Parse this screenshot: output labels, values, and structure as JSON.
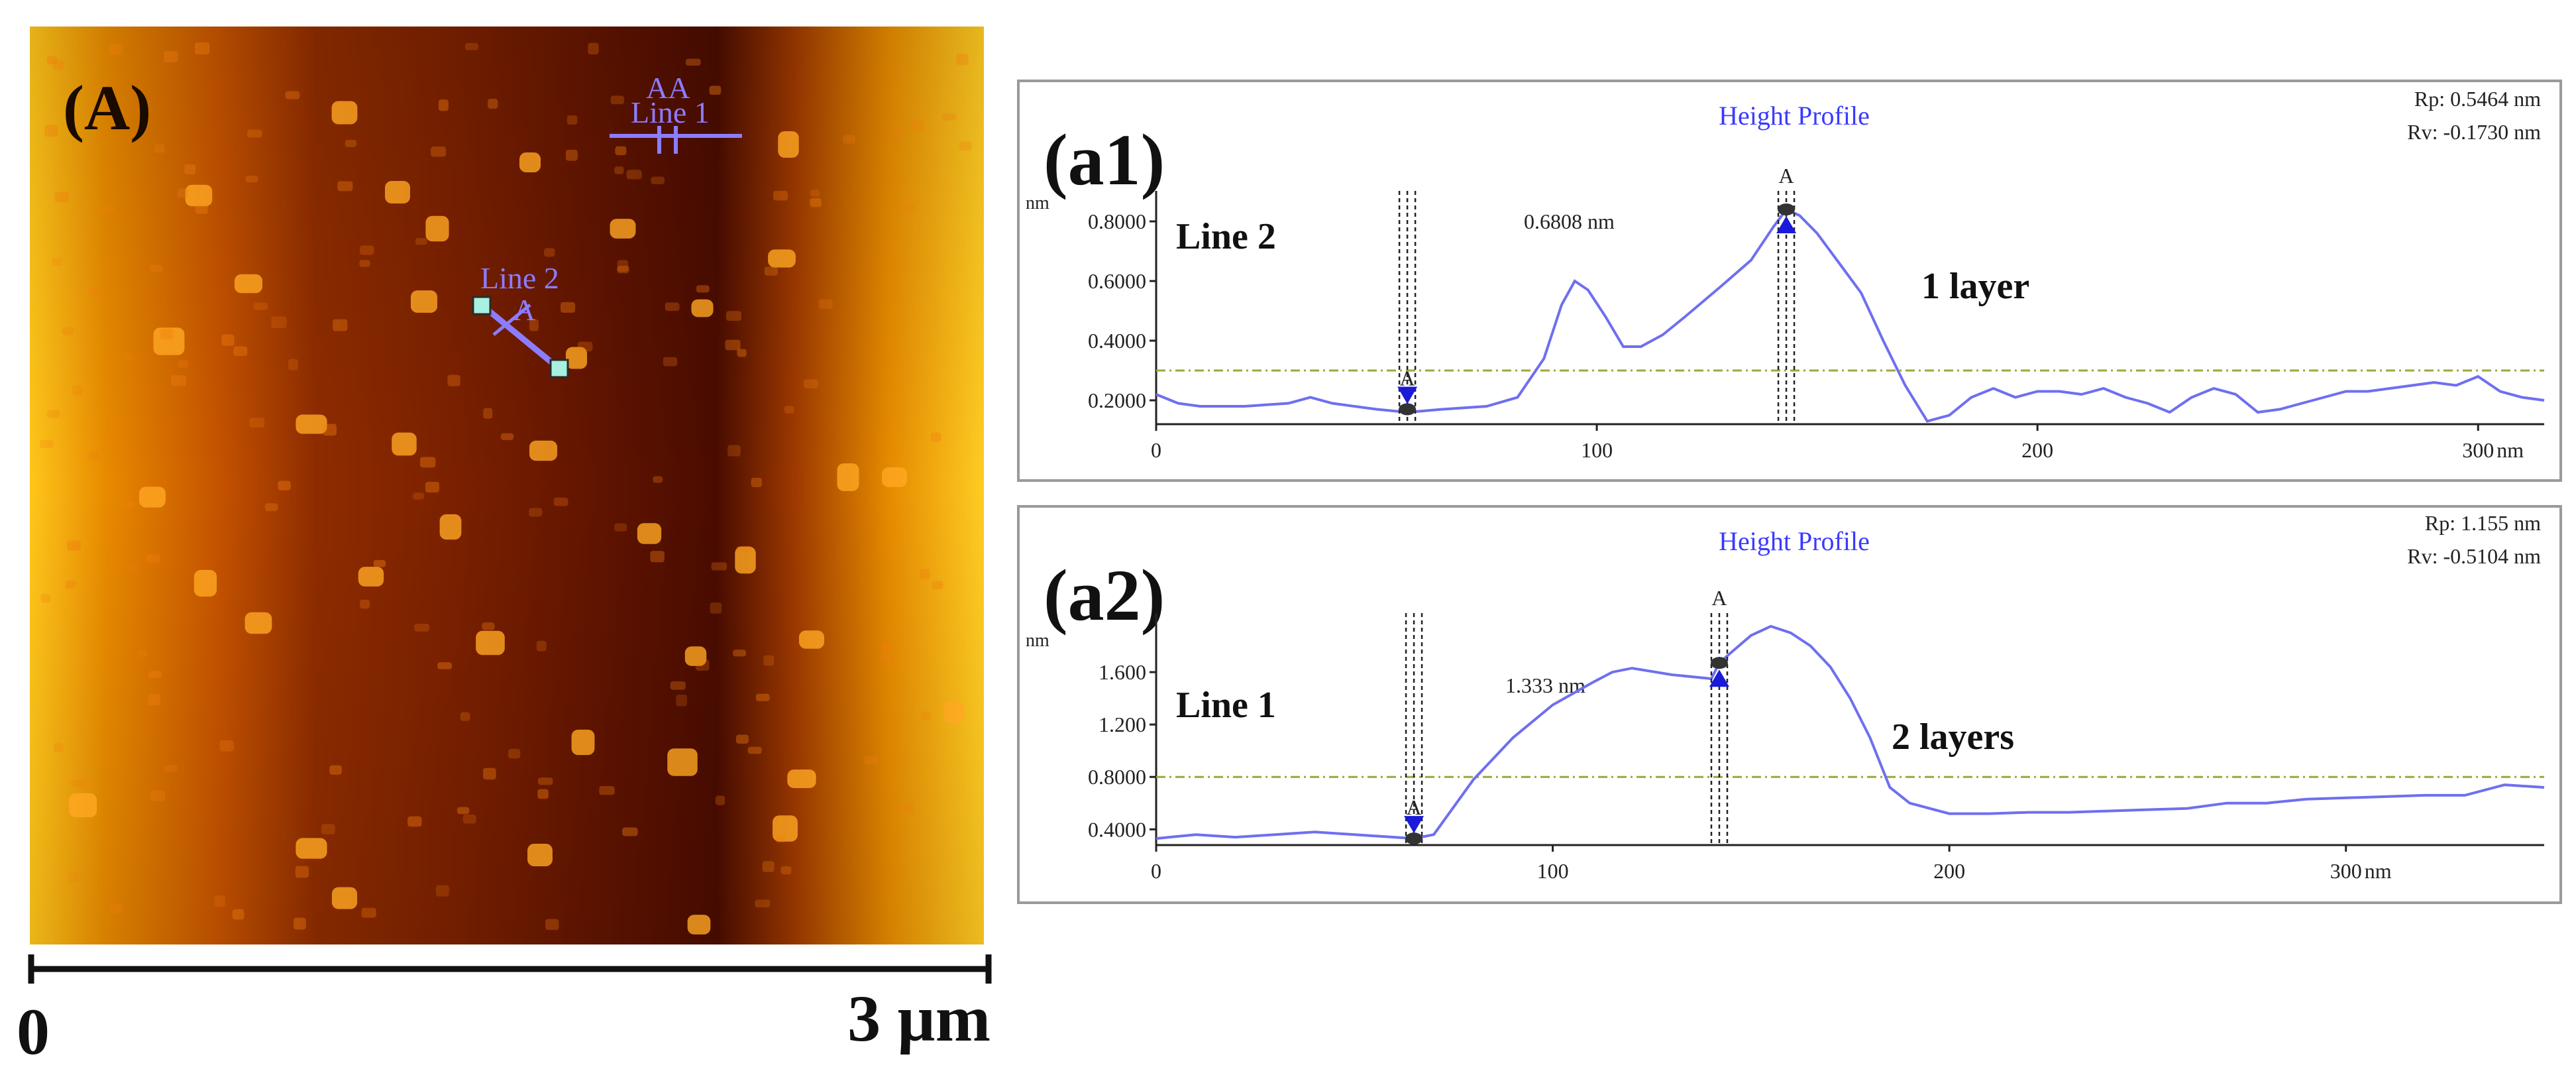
{
  "afm_image": {
    "panel_label": "(A)",
    "scale_start": "0",
    "scale_end": "3 µm",
    "line1_label": "Line 1",
    "line2_label": "Line 2",
    "marker_label_a": "A",
    "marker_label_aa": "AA",
    "colors": {
      "dark": "#5a1200",
      "mid": "#c85000",
      "light": "#f5a800",
      "overlay": "#8c7cff",
      "endpoint": "#a8f0e0"
    }
  },
  "chart_data": [
    {
      "type": "line",
      "panel_label": "(a1)",
      "title": "Height Profile",
      "unit_label": "nm",
      "x_end_label": "nm",
      "line_label": "Line 2",
      "layer_label": "1 layer",
      "rp": "Rp: 0.5464 nm",
      "rv": "Rv: -0.1730 nm",
      "measure_label": "0.6808 nm",
      "marker_label": "A",
      "xlim": [
        0,
        315
      ],
      "ylim": [
        0.12,
        0.88
      ],
      "xticks": [
        0,
        100,
        200,
        300
      ],
      "xtick_labels": [
        "0",
        "100",
        "200",
        "300"
      ],
      "yticks": [
        0.2,
        0.4,
        0.6,
        0.8
      ],
      "ytick_labels": [
        "0.2000",
        "0.4000",
        "0.6000",
        "0.8000"
      ],
      "reference_level": 0.3,
      "cursor_low": {
        "x": 57,
        "y": 0.17
      },
      "cursor_high": {
        "x": 143,
        "y": 0.84
      },
      "line_color": "#6f6ff0",
      "x": [
        0,
        5,
        10,
        20,
        30,
        35,
        40,
        50,
        57,
        65,
        75,
        82,
        88,
        92,
        95,
        98,
        102,
        106,
        110,
        115,
        120,
        128,
        135,
        140,
        143,
        146,
        150,
        155,
        160,
        165,
        170,
        175,
        180,
        185,
        190,
        195,
        200,
        205,
        210,
        215,
        220,
        225,
        230,
        235,
        240,
        245,
        250,
        255,
        260,
        265,
        270,
        275,
        280,
        285,
        290,
        295,
        300,
        305,
        310,
        315
      ],
      "y": [
        0.22,
        0.19,
        0.18,
        0.18,
        0.19,
        0.21,
        0.19,
        0.17,
        0.16,
        0.17,
        0.18,
        0.21,
        0.34,
        0.52,
        0.6,
        0.57,
        0.48,
        0.38,
        0.38,
        0.42,
        0.48,
        0.58,
        0.67,
        0.78,
        0.84,
        0.82,
        0.76,
        0.66,
        0.56,
        0.4,
        0.25,
        0.13,
        0.15,
        0.21,
        0.24,
        0.21,
        0.23,
        0.23,
        0.22,
        0.24,
        0.21,
        0.19,
        0.16,
        0.21,
        0.24,
        0.22,
        0.16,
        0.17,
        0.19,
        0.21,
        0.23,
        0.23,
        0.24,
        0.25,
        0.26,
        0.25,
        0.28,
        0.23,
        0.21,
        0.2
      ]
    },
    {
      "type": "line",
      "panel_label": "(a2)",
      "title": "Height Profile",
      "unit_label": "nm",
      "x_end_label": "nm",
      "line_label": "Line 1",
      "layer_label": "2 layers",
      "rp": "Rp: 1.155 nm",
      "rv": "Rv: -0.5104 nm",
      "measure_label": "1.333 nm",
      "marker_label": "A",
      "xlim": [
        0,
        350
      ],
      "ylim": [
        0.28,
        2.0
      ],
      "xticks": [
        0,
        100,
        200,
        300
      ],
      "xtick_labels": [
        "0",
        "100",
        "200",
        "300"
      ],
      "yticks": [
        0.4,
        0.8,
        1.2,
        1.6
      ],
      "ytick_labels": [
        "0.4000",
        "0.8000",
        "1.200",
        "1.600"
      ],
      "reference_level": 0.8,
      "cursor_low": {
        "x": 65,
        "y": 0.33
      },
      "cursor_high": {
        "x": 142,
        "y": 1.67
      },
      "line_color": "#6f6ff0",
      "x": [
        0,
        10,
        20,
        30,
        40,
        50,
        60,
        65,
        70,
        80,
        90,
        100,
        110,
        115,
        120,
        130,
        140,
        142,
        145,
        150,
        155,
        160,
        165,
        170,
        175,
        180,
        185,
        190,
        200,
        210,
        220,
        230,
        240,
        250,
        260,
        270,
        280,
        290,
        300,
        310,
        320,
        330,
        340,
        350
      ],
      "y": [
        0.33,
        0.36,
        0.34,
        0.36,
        0.38,
        0.36,
        0.34,
        0.33,
        0.36,
        0.78,
        1.1,
        1.35,
        1.52,
        1.6,
        1.63,
        1.58,
        1.55,
        1.67,
        1.75,
        1.88,
        1.95,
        1.9,
        1.8,
        1.64,
        1.4,
        1.1,
        0.72,
        0.6,
        0.52,
        0.52,
        0.53,
        0.53,
        0.54,
        0.55,
        0.56,
        0.6,
        0.6,
        0.63,
        0.64,
        0.65,
        0.66,
        0.66,
        0.74,
        0.72
      ]
    }
  ]
}
